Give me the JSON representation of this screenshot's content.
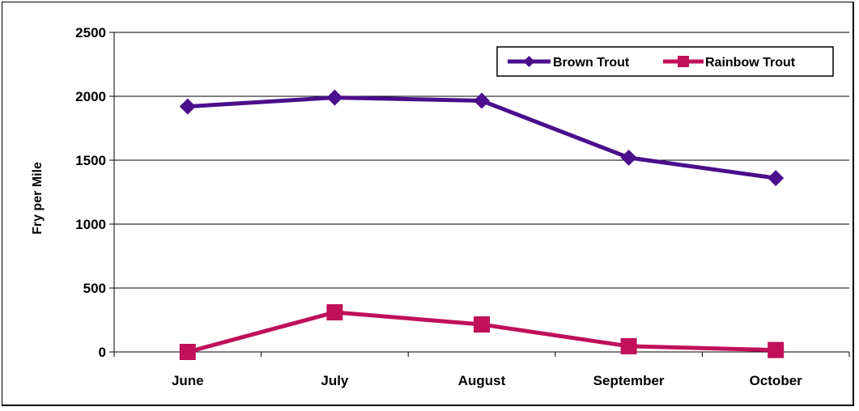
{
  "chart_data": {
    "type": "line",
    "title": "",
    "xlabel": "",
    "ylabel": "Fry per Mile",
    "categories": [
      "June",
      "July",
      "August",
      "September",
      "October"
    ],
    "ylim": [
      0,
      2500
    ],
    "yticks": [
      0,
      500,
      1000,
      1500,
      2000,
      2500
    ],
    "grid": true,
    "legend_position": "top-right",
    "series": [
      {
        "name": "Brown Trout",
        "values": [
          1920,
          1990,
          1965,
          1520,
          1360
        ],
        "color": "#4B0E8C",
        "marker": "diamond"
      },
      {
        "name": "Rainbow Trout",
        "values": [
          0,
          310,
          215,
          45,
          15
        ],
        "color": "#C0105A",
        "marker": "square"
      }
    ]
  }
}
